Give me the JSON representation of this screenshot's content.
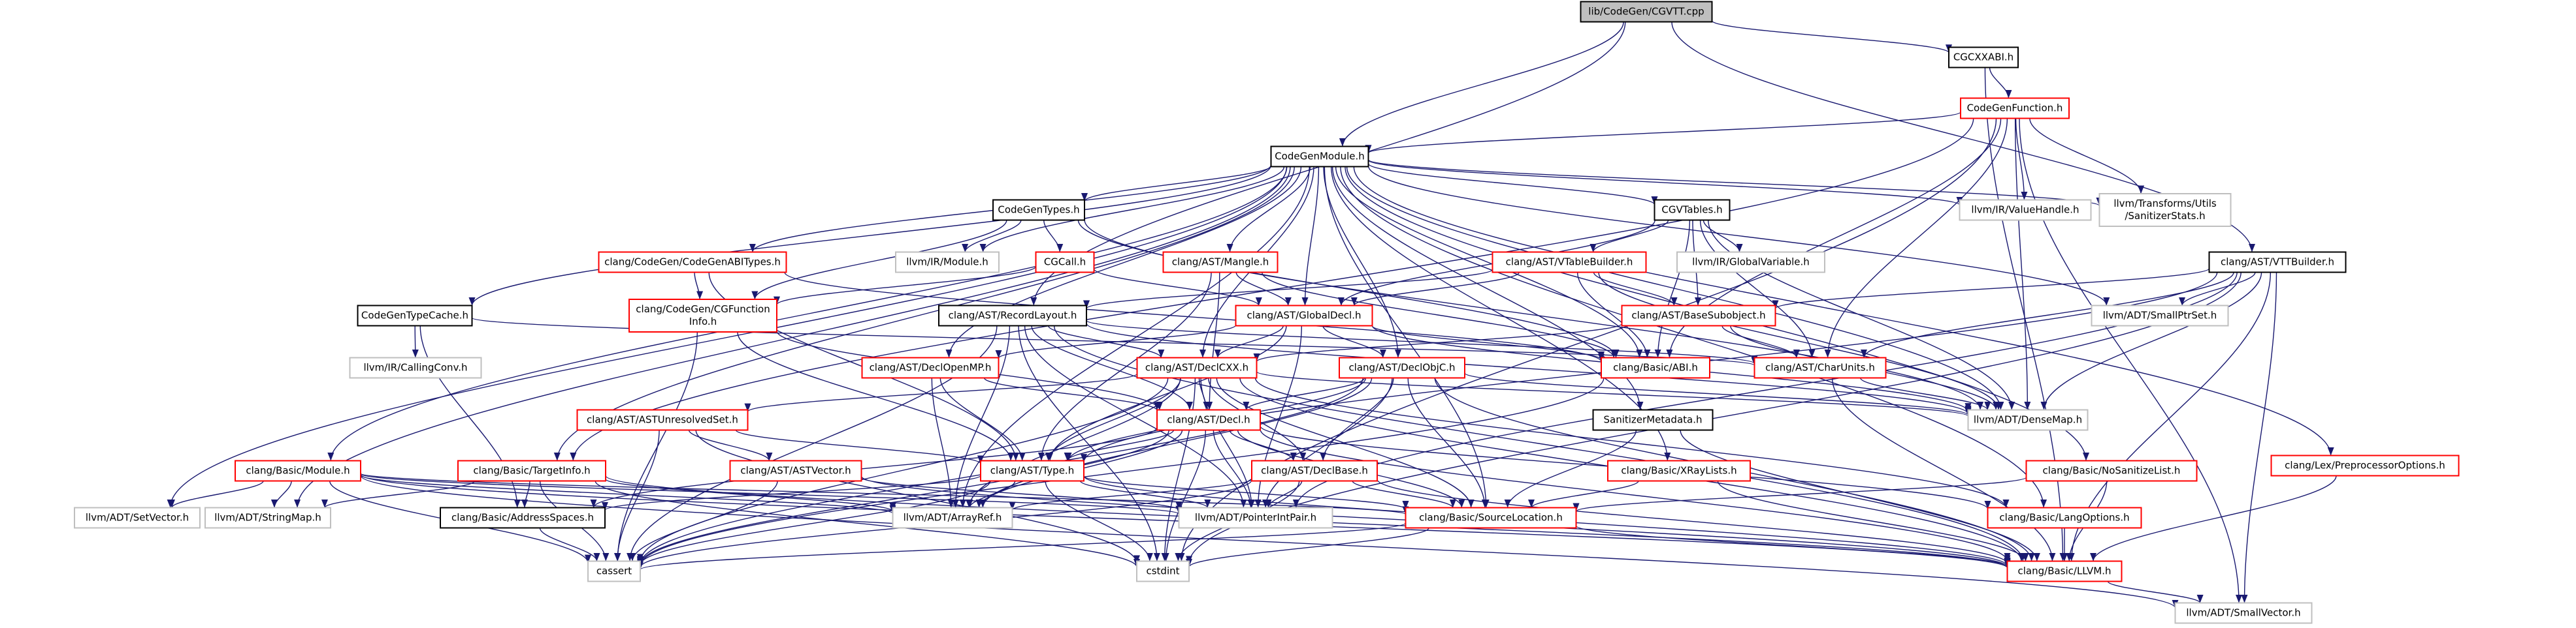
{
  "graph": {
    "colors": {
      "edge": "#191970",
      "border_default": "#bfbfbf",
      "border_highlight": "#ff0000",
      "border_plain": "#000000",
      "fill_root": "#bfbfbf",
      "fill_default": "#ffffff"
    },
    "nodes": [
      {
        "id": "root",
        "lines": [
          "lib/CodeGen/CGVTT.cpp"
        ],
        "style": "root"
      },
      {
        "id": "cgcxxabi",
        "lines": [
          "CGCXXABI.h"
        ],
        "style": "plain"
      },
      {
        "id": "codegenfunction",
        "lines": [
          "CodeGenFunction.h"
        ],
        "style": "highlight"
      },
      {
        "id": "codegenmodule",
        "lines": [
          "CodeGenModule.h"
        ],
        "style": "plain"
      },
      {
        "id": "codegentypes",
        "lines": [
          "CodeGenTypes.h"
        ],
        "style": "plain"
      },
      {
        "id": "cgvtables",
        "lines": [
          "CGVTables.h"
        ],
        "style": "plain"
      },
      {
        "id": "valuehandle",
        "lines": [
          "llvm/IR/ValueHandle.h"
        ],
        "style": "default"
      },
      {
        "id": "sanitizerstats",
        "lines": [
          "llvm/Transforms/Utils",
          "/SanitizerStats.h"
        ],
        "style": "default"
      },
      {
        "id": "vttbuilder",
        "lines": [
          "clang/AST/VTTBuilder.h"
        ],
        "style": "plain"
      },
      {
        "id": "codegenabitypes",
        "lines": [
          "clang/CodeGen/CodeGenABITypes.h"
        ],
        "style": "highlight"
      },
      {
        "id": "irmodule",
        "lines": [
          "llvm/IR/Module.h"
        ],
        "style": "default"
      },
      {
        "id": "cgcall",
        "lines": [
          "CGCall.h"
        ],
        "style": "highlight"
      },
      {
        "id": "mangle",
        "lines": [
          "clang/AST/Mangle.h"
        ],
        "style": "highlight"
      },
      {
        "id": "vtablebuilder",
        "lines": [
          "clang/AST/VTableBuilder.h"
        ],
        "style": "highlight"
      },
      {
        "id": "globalvariable",
        "lines": [
          "llvm/IR/GlobalVariable.h"
        ],
        "style": "default"
      },
      {
        "id": "codegentypecache",
        "lines": [
          "CodeGenTypeCache.h"
        ],
        "style": "plain"
      },
      {
        "id": "cgfunctioninfo",
        "lines": [
          "clang/CodeGen/CGFunction",
          "Info.h"
        ],
        "style": "highlight"
      },
      {
        "id": "recordlayout",
        "lines": [
          "clang/AST/RecordLayout.h"
        ],
        "style": "plain"
      },
      {
        "id": "globaldecl",
        "lines": [
          "clang/AST/GlobalDecl.h"
        ],
        "style": "highlight"
      },
      {
        "id": "basesubobject",
        "lines": [
          "clang/AST/BaseSubobject.h"
        ],
        "style": "highlight"
      },
      {
        "id": "smallptrset",
        "lines": [
          "llvm/ADT/SmallPtrSet.h"
        ],
        "style": "default"
      },
      {
        "id": "callingconv",
        "lines": [
          "llvm/IR/CallingConv.h"
        ],
        "style": "default"
      },
      {
        "id": "declopenmp",
        "lines": [
          "clang/AST/DeclOpenMP.h"
        ],
        "style": "highlight"
      },
      {
        "id": "declcxx",
        "lines": [
          "clang/AST/DeclCXX.h"
        ],
        "style": "highlight"
      },
      {
        "id": "declobjc",
        "lines": [
          "clang/AST/DeclObjC.h"
        ],
        "style": "highlight"
      },
      {
        "id": "abi",
        "lines": [
          "clang/Basic/ABI.h"
        ],
        "style": "highlight"
      },
      {
        "id": "charunits",
        "lines": [
          "clang/AST/CharUnits.h"
        ],
        "style": "highlight"
      },
      {
        "id": "sanitizermetadata",
        "lines": [
          "SanitizerMetadata.h"
        ],
        "style": "plain"
      },
      {
        "id": "densemap",
        "lines": [
          "llvm/ADT/DenseMap.h"
        ],
        "style": "default"
      },
      {
        "id": "unresolvedset",
        "lines": [
          "clang/AST/ASTUnresolvedSet.h"
        ],
        "style": "highlight"
      },
      {
        "id": "decl",
        "lines": [
          "clang/AST/Decl.h"
        ],
        "style": "highlight"
      },
      {
        "id": "preprocessoroptions",
        "lines": [
          "clang/Lex/PreprocessorOptions.h"
        ],
        "style": "highlight"
      },
      {
        "id": "module",
        "lines": [
          "clang/Basic/Module.h"
        ],
        "style": "highlight"
      },
      {
        "id": "targetinfo",
        "lines": [
          "clang/Basic/TargetInfo.h"
        ],
        "style": "highlight"
      },
      {
        "id": "astvector",
        "lines": [
          "clang/AST/ASTVector.h"
        ],
        "style": "highlight"
      },
      {
        "id": "type",
        "lines": [
          "clang/AST/Type.h"
        ],
        "style": "highlight"
      },
      {
        "id": "declbase",
        "lines": [
          "clang/AST/DeclBase.h"
        ],
        "style": "highlight"
      },
      {
        "id": "xraylists",
        "lines": [
          "clang/Basic/XRayLists.h"
        ],
        "style": "highlight"
      },
      {
        "id": "nosanitizelist",
        "lines": [
          "clang/Basic/NoSanitizeList.h"
        ],
        "style": "highlight"
      },
      {
        "id": "setvector",
        "lines": [
          "llvm/ADT/SetVector.h"
        ],
        "style": "default"
      },
      {
        "id": "stringmap",
        "lines": [
          "llvm/ADT/StringMap.h"
        ],
        "style": "default"
      },
      {
        "id": "addressspaces",
        "lines": [
          "clang/Basic/AddressSpaces.h"
        ],
        "style": "plain"
      },
      {
        "id": "arrayref",
        "lines": [
          "llvm/ADT/ArrayRef.h"
        ],
        "style": "default"
      },
      {
        "id": "pointerintpair",
        "lines": [
          "llvm/ADT/PointerIntPair.h"
        ],
        "style": "default"
      },
      {
        "id": "sourcelocation",
        "lines": [
          "clang/Basic/SourceLocation.h"
        ],
        "style": "highlight"
      },
      {
        "id": "langoptions",
        "lines": [
          "clang/Basic/LangOptions.h"
        ],
        "style": "highlight"
      },
      {
        "id": "cassert",
        "lines": [
          "cassert"
        ],
        "style": "default"
      },
      {
        "id": "cstdint",
        "lines": [
          "cstdint"
        ],
        "style": "default"
      },
      {
        "id": "llvmh",
        "lines": [
          "clang/Basic/LLVM.h"
        ],
        "style": "highlight"
      },
      {
        "id": "smallvector",
        "lines": [
          "llvm/ADT/SmallVector.h"
        ],
        "style": "default"
      }
    ],
    "edges": [
      [
        "root",
        "cgcxxabi"
      ],
      [
        "root",
        "codegenmodule"
      ],
      [
        "root",
        "vttbuilder"
      ],
      [
        "root",
        "recordlayout"
      ],
      [
        "cgcxxabi",
        "codegenfunction"
      ],
      [
        "cgcxxabi",
        "llvmh"
      ],
      [
        "codegenfunction",
        "codegenmodule"
      ],
      [
        "codegenfunction",
        "valuehandle"
      ],
      [
        "codegenfunction",
        "sanitizerstats"
      ],
      [
        "codegenfunction",
        "abi"
      ],
      [
        "codegenfunction",
        "densemap"
      ],
      [
        "codegenfunction",
        "smallvector"
      ],
      [
        "codegenfunction",
        "targetinfo"
      ],
      [
        "codegenfunction",
        "cstdint"
      ],
      [
        "codegenfunction",
        "charunits"
      ],
      [
        "codegenmodule",
        "codegentypes"
      ],
      [
        "codegenmodule",
        "cgvtables"
      ],
      [
        "codegenmodule",
        "valuehandle"
      ],
      [
        "codegenmodule",
        "sanitizerstats"
      ],
      [
        "codegenmodule",
        "codegenabitypes"
      ],
      [
        "codegenmodule",
        "irmodule"
      ],
      [
        "codegenmodule",
        "mangle"
      ],
      [
        "codegenmodule",
        "codegentypecache"
      ],
      [
        "codegenmodule",
        "globaldecl"
      ],
      [
        "codegenmodule",
        "module"
      ],
      [
        "codegenmodule",
        "targetinfo"
      ],
      [
        "codegenmodule",
        "setvector"
      ],
      [
        "codegenmodule",
        "stringmap"
      ],
      [
        "codegenmodule",
        "smallptrset"
      ],
      [
        "codegenmodule",
        "sanitizermetadata"
      ],
      [
        "codegenmodule",
        "xraylists"
      ],
      [
        "codegenmodule",
        "nosanitizelist"
      ],
      [
        "codegenmodule",
        "preprocessoroptions"
      ],
      [
        "codegenmodule",
        "langoptions"
      ],
      [
        "codegenmodule",
        "declcxx"
      ],
      [
        "codegenmodule",
        "declobjc"
      ],
      [
        "codegenmodule",
        "declopenmp"
      ],
      [
        "codegenmodule",
        "abi"
      ],
      [
        "codegenmodule",
        "densemap"
      ],
      [
        "codegenmodule",
        "arrayref"
      ],
      [
        "codegenmodule",
        "sourcelocation"
      ],
      [
        "codegentypes",
        "irmodule"
      ],
      [
        "codegentypes",
        "cgcall"
      ],
      [
        "codegentypes",
        "cgfunctioninfo"
      ],
      [
        "codegentypes",
        "abi"
      ],
      [
        "codegentypes",
        "densemap"
      ],
      [
        "cgvtables",
        "vtablebuilder"
      ],
      [
        "cgvtables",
        "globalvariable"
      ],
      [
        "cgvtables",
        "globaldecl"
      ],
      [
        "cgvtables",
        "basesubobject"
      ],
      [
        "cgvtables",
        "abi"
      ],
      [
        "cgvtables",
        "densemap"
      ],
      [
        "cgvtables",
        "charunits"
      ],
      [
        "vttbuilder",
        "basesubobject"
      ],
      [
        "vttbuilder",
        "charunits"
      ],
      [
        "vttbuilder",
        "densemap"
      ],
      [
        "vttbuilder",
        "smallptrset"
      ],
      [
        "vttbuilder",
        "smallvector"
      ],
      [
        "vttbuilder",
        "llvmh"
      ],
      [
        "vttbuilder",
        "cstdint"
      ],
      [
        "vttbuilder",
        "type"
      ],
      [
        "vttbuilder",
        "pointerintpair"
      ],
      [
        "codegenabitypes",
        "cgfunctioninfo"
      ],
      [
        "codegenabitypes",
        "type"
      ],
      [
        "codegenabitypes",
        "abi"
      ],
      [
        "cgcall",
        "globaldecl"
      ],
      [
        "cgcall",
        "cgfunctioninfo"
      ],
      [
        "mangle",
        "globaldecl"
      ],
      [
        "mangle",
        "decl"
      ],
      [
        "mangle",
        "type"
      ],
      [
        "mangle",
        "abi"
      ],
      [
        "vtablebuilder",
        "recordlayout"
      ],
      [
        "vtablebuilder",
        "globaldecl"
      ],
      [
        "vtablebuilder",
        "basesubobject"
      ],
      [
        "vtablebuilder",
        "abi"
      ],
      [
        "vtablebuilder",
        "densemap"
      ],
      [
        "codegentypecache",
        "callingconv"
      ],
      [
        "codegentypecache",
        "charunits"
      ],
      [
        "codegentypecache",
        "addressspaces"
      ],
      [
        "cgfunctioninfo",
        "type"
      ],
      [
        "cgfunctioninfo",
        "decl"
      ],
      [
        "cgfunctioninfo",
        "cassert"
      ],
      [
        "recordlayout",
        "charunits"
      ],
      [
        "recordlayout",
        "declcxx"
      ],
      [
        "recordlayout",
        "densemap"
      ],
      [
        "recordlayout",
        "pointerintpair"
      ],
      [
        "recordlayout",
        "arrayref"
      ],
      [
        "recordlayout",
        "cassert"
      ],
      [
        "recordlayout",
        "cstdint"
      ],
      [
        "recordlayout",
        "llvmh"
      ],
      [
        "recordlayout",
        "decl"
      ],
      [
        "globaldecl",
        "declcxx"
      ],
      [
        "globaldecl",
        "declobjc"
      ],
      [
        "globaldecl",
        "declopenmp"
      ],
      [
        "globaldecl",
        "abi"
      ],
      [
        "globaldecl",
        "densemap"
      ],
      [
        "globaldecl",
        "pointerintpair"
      ],
      [
        "globaldecl",
        "type"
      ],
      [
        "basesubobject",
        "charunits"
      ],
      [
        "basesubobject",
        "declcxx"
      ],
      [
        "basesubobject",
        "densemap"
      ],
      [
        "declopenmp",
        "decl"
      ],
      [
        "declopenmp",
        "type"
      ],
      [
        "declopenmp",
        "arrayref"
      ],
      [
        "declcxx",
        "unresolvedset"
      ],
      [
        "declcxx",
        "decl"
      ],
      [
        "declcxx",
        "declbase"
      ],
      [
        "declcxx",
        "type"
      ],
      [
        "declcxx",
        "llvmh"
      ],
      [
        "declcxx",
        "sourcelocation"
      ],
      [
        "declcxx",
        "langoptions"
      ],
      [
        "declcxx",
        "arrayref"
      ],
      [
        "declcxx",
        "pointerintpair"
      ],
      [
        "declcxx",
        "cassert"
      ],
      [
        "declcxx",
        "cstdint"
      ],
      [
        "declcxx",
        "densemap"
      ],
      [
        "declobjc",
        "decl"
      ],
      [
        "declobjc",
        "declbase"
      ],
      [
        "declobjc",
        "type"
      ],
      [
        "declobjc",
        "llvmh"
      ],
      [
        "declobjc",
        "sourcelocation"
      ],
      [
        "declobjc",
        "densemap"
      ],
      [
        "declobjc",
        "arrayref"
      ],
      [
        "declobjc",
        "pointerintpair"
      ],
      [
        "declobjc",
        "cassert"
      ],
      [
        "abi",
        "cassert"
      ],
      [
        "charunits",
        "densemap"
      ],
      [
        "charunits",
        "llvmh"
      ],
      [
        "sanitizermetadata",
        "sourcelocation"
      ],
      [
        "sanitizermetadata",
        "llvmh"
      ],
      [
        "unresolvedset",
        "astvector"
      ],
      [
        "unresolvedset",
        "type"
      ],
      [
        "unresolvedset",
        "cassert"
      ],
      [
        "unresolvedset",
        "cstdint"
      ],
      [
        "decl",
        "declbase"
      ],
      [
        "decl",
        "type"
      ],
      [
        "decl",
        "arrayref"
      ],
      [
        "decl",
        "pointerintpair"
      ],
      [
        "decl",
        "sourcelocation"
      ],
      [
        "decl",
        "llvmh"
      ],
      [
        "decl",
        "cassert"
      ],
      [
        "decl",
        "cstdint"
      ],
      [
        "decl",
        "addressspaces"
      ],
      [
        "decl",
        "langoptions"
      ],
      [
        "preprocessoroptions",
        "llvmh"
      ],
      [
        "module",
        "sourcelocation"
      ],
      [
        "module",
        "llvmh"
      ],
      [
        "module",
        "arrayref"
      ],
      [
        "module",
        "pointerintpair"
      ],
      [
        "module",
        "setvector"
      ],
      [
        "module",
        "stringmap"
      ],
      [
        "module",
        "smallvector"
      ],
      [
        "module",
        "cassert"
      ],
      [
        "targetinfo",
        "addressspaces"
      ],
      [
        "targetinfo",
        "llvmh"
      ],
      [
        "targetinfo",
        "arrayref"
      ],
      [
        "targetinfo",
        "stringmap"
      ],
      [
        "targetinfo",
        "cassert"
      ],
      [
        "targetinfo",
        "cstdint"
      ],
      [
        "astvector",
        "llvmh"
      ],
      [
        "astvector",
        "cassert"
      ],
      [
        "astvector",
        "pointerintpair"
      ],
      [
        "type",
        "addressspaces"
      ],
      [
        "type",
        "arrayref"
      ],
      [
        "type",
        "pointerintpair"
      ],
      [
        "type",
        "sourcelocation"
      ],
      [
        "type",
        "llvmh"
      ],
      [
        "type",
        "cassert"
      ],
      [
        "type",
        "cstdint"
      ],
      [
        "declbase",
        "sourcelocation"
      ],
      [
        "declbase",
        "llvmh"
      ],
      [
        "declbase",
        "arrayref"
      ],
      [
        "declbase",
        "pointerintpair"
      ],
      [
        "declbase",
        "cassert"
      ],
      [
        "declbase",
        "cstdint"
      ],
      [
        "xraylists",
        "sourcelocation"
      ],
      [
        "xraylists",
        "llvmh"
      ],
      [
        "nosanitizelist",
        "sourcelocation"
      ],
      [
        "nosanitizelist",
        "llvmh"
      ],
      [
        "addressspaces",
        "cassert"
      ],
      [
        "sourcelocation",
        "llvmh"
      ],
      [
        "sourcelocation",
        "cassert"
      ],
      [
        "sourcelocation",
        "cstdint"
      ],
      [
        "langoptions",
        "llvmh"
      ],
      [
        "llvmh",
        "smallvector"
      ]
    ]
  }
}
